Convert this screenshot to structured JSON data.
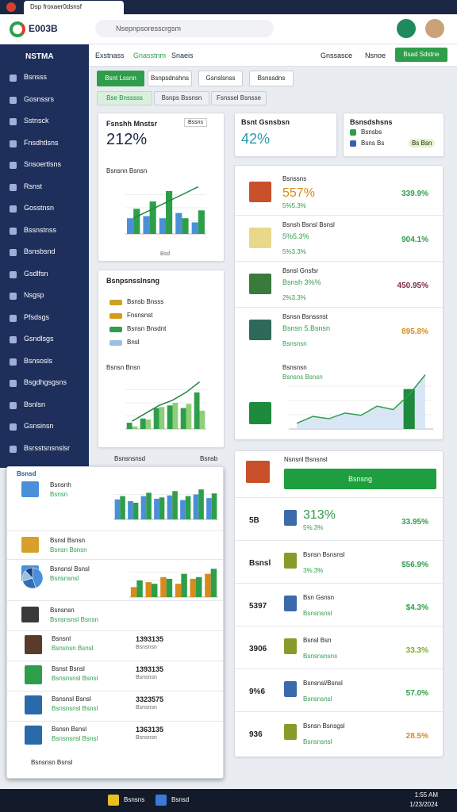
{
  "browser": {
    "tab": "Dsp froxaer0dsnsf",
    "logo": "E003B",
    "search": "Nsepnpsoresscrgsm"
  },
  "sidebar": {
    "title": "NSTMA",
    "items": [
      "Bsnsss",
      "Gosnssrs",
      "Sstnsck",
      "Fnsdhtlsns",
      "Snsoertlsns",
      "Rsnst",
      "Gosstnsn",
      "Bssnstnss",
      "Bsnsbsnd",
      "Gsdlfsn",
      "Nsgsp",
      "Pfsdsgs",
      "Gsndlsgs",
      "Bsnsosls",
      "Bsgdhgsgsns",
      "Bsnlsn",
      "Gsnsinsn",
      "Bsrsstsnsnslsr"
    ]
  },
  "nav": {
    "links": [
      "Exstnass",
      "Gnasstnm",
      "Snaeis"
    ],
    "right": [
      "Gnssasce",
      "Nsnoe"
    ],
    "button": "Bsad Sdstne"
  },
  "actions": [
    "Bsnt Lssnn",
    "Bsnpsdnshns",
    "Gsnslsnss",
    "Bsnssdns"
  ],
  "tabs": [
    "Bse Bnsssss",
    "Bsnps Bssnsn",
    "Fsnssel Bsnsse"
  ],
  "card1": {
    "title": "Fsnshh Mnstsr",
    "chip": "Bssns",
    "value": "212%",
    "chart_title": "Bsnsnn Bsnsn",
    "axis": "Bsd",
    "chart": {
      "type": "bar",
      "ylim": [
        0,
        100
      ],
      "series": [
        {
          "color": "#4a8fd8",
          "values": [
            30,
            34,
            30,
            40,
            22
          ]
        },
        {
          "color": "#2e9e4b",
          "values": [
            48,
            62,
            82,
            30,
            45
          ]
        }
      ],
      "line": {
        "color": "#1e8a3e",
        "values": [
          30,
          45,
          60,
          75,
          90
        ]
      }
    }
  },
  "card2": {
    "title": "Bsnpsnsslnsng",
    "legend": [
      {
        "name": "Bsnsb Bnsss",
        "color": "#c9a227"
      },
      {
        "name": "Fnsnsnst",
        "color": "#d89a1a"
      },
      {
        "name": "Bsnsn Bnsdnt",
        "color": "#2e9e4b"
      },
      {
        "name": "Bnsl",
        "color": "#9bc0e0"
      }
    ],
    "chart_title": "Bsnsn Bnsn",
    "chart": {
      "type": "bar",
      "ylim": [
        0,
        100
      ],
      "series": [
        {
          "color": "#2e9e4b",
          "values": [
            12,
            20,
            40,
            45,
            40,
            70
          ]
        },
        {
          "color": "#8fcf7a",
          "values": [
            5,
            18,
            42,
            50,
            48,
            35
          ]
        }
      ],
      "line": {
        "color": "#1e8a3e",
        "values": [
          15,
          30,
          45,
          55,
          70,
          90
        ]
      }
    }
  },
  "left_footer": [
    "Bsnsnsnsd",
    "Bsnsb"
  ],
  "kpi": {
    "title": "Bsnt Gsnsbsn",
    "value": "42%"
  },
  "legend_card": {
    "title": "Bsnsdshsns",
    "items": [
      "Bsnsbs",
      "Bsns Bs"
    ],
    "tag": "Bs Bsn"
  },
  "list1": {
    "header": "Bsnssns",
    "items": [
      {
        "title": "Bsnssns",
        "value": "557%",
        "note": "5%5.3%",
        "right": "339.9%",
        "color": "#2e9e4b"
      },
      {
        "title": "Bsnsh Bsnsl Bsnsl",
        "value": "5%5.3%",
        "note": "5%3.3%",
        "right": "904.1%",
        "color": "#2e9e4b"
      },
      {
        "title": "Bsnsl Gnsfsr",
        "value": "Bsnsh 3%%",
        "note": "2%3.3%",
        "right": "450.95%",
        "color": "#7a2a4a"
      },
      {
        "title": "Bsnsn Bsnssnst",
        "value": "Bsnsn 5.Bsnsn",
        "note": "Bsnsnsn",
        "right": "895.8%",
        "color": "#d88a1a"
      }
    ],
    "chart_title": "Bsnsnsn",
    "chart_note": "Bsnsns Bsnsn",
    "chart": {
      "type": "area",
      "ylim": [
        0,
        100
      ],
      "series": [
        {
          "color": "#2e9e4b",
          "values": [
            10,
            22,
            18,
            28,
            24,
            40,
            34,
            60,
            95
          ]
        }
      ],
      "bars": {
        "color": "#1e8a3e",
        "values": [
          null,
          null,
          null,
          null,
          null,
          null,
          null,
          70,
          null
        ]
      }
    }
  },
  "list2": {
    "header": "Nsnsnl Bsnsnsl",
    "button": "Bsnsng",
    "items": [
      {
        "left": "5B",
        "title": "313%",
        "note": "5%.3%",
        "right": "33.95%",
        "color": "#2e9e4b"
      },
      {
        "left": "Bsnsl",
        "title": "Bsnsn Bsnsnsl",
        "note": "3%.3%",
        "right": "$56.9%",
        "color": "#2e9e4b"
      },
      {
        "left": "5397",
        "title": "Bsn Gsnsn",
        "note": "Bsnsnsnsl",
        "right": "$4.3%",
        "color": "#2e9e4b"
      },
      {
        "left": "3906",
        "title": "Bsnsl Bsn",
        "note": "Bsnsnsnsns",
        "right": "33.3%",
        "color": "#7ab020"
      },
      {
        "left": "9%6",
        "title": "Bsnsnsl/Bsnsl",
        "note": "Bsnsnsnsl",
        "right": "57.0%",
        "color": "#2e9e4b"
      },
      {
        "left": "936",
        "title": "Bsnsn Bsnsgsl",
        "note": "Bsnsnsnsl",
        "right": "28.5%",
        "color": "#d88a1a"
      }
    ]
  },
  "panel": {
    "header": "Bsnsd",
    "top": [
      {
        "title": "Bsnsnh",
        "note": "Bsnsn"
      },
      {
        "title": "Bsnsl Bsnsn",
        "note": "Bsnsn Bsnsn"
      },
      {
        "title": "Bsnsnsl Bsnsl",
        "note": "Bsnsnsnsl"
      },
      {
        "title": "Bsnsnsn",
        "note": "Bsnsnsnsl Bsnsn"
      }
    ],
    "chart1": {
      "type": "bar",
      "ylim": [
        0,
        100
      ],
      "series": [
        {
          "color": "#4a8fd8",
          "values": [
            60,
            55,
            70,
            62,
            72,
            58,
            75,
            64
          ]
        },
        {
          "color": "#2e9e4b",
          "values": [
            70,
            50,
            80,
            66,
            85,
            70,
            90,
            78
          ]
        }
      ]
    },
    "pie": {
      "type": "pie",
      "values": [
        45,
        25,
        18,
        12
      ],
      "colors": [
        "#4a8fd8",
        "#2e6fb5",
        "#9bc0e0",
        "#1f3f7a"
      ]
    },
    "chart2": {
      "type": "bar",
      "ylim": [
        0,
        100
      ],
      "series": [
        {
          "color": "#d88a1a",
          "values": [
            30,
            45,
            60,
            40,
            55,
            70
          ]
        },
        {
          "color": "#2e9e4b",
          "values": [
            50,
            40,
            55,
            70,
            60,
            85
          ]
        }
      ]
    },
    "rows": [
      {
        "title": "Bsnsnl",
        "note": "Bsnsnsn Bsnsl",
        "num": "1393135",
        "sub": "Bsnsnsn"
      },
      {
        "title": "Bsnst Bsnsl",
        "note": "Bsnsnsnsl Bsnsl",
        "num": "1393135",
        "sub": "Bsnsnsn"
      },
      {
        "title": "Bsnsnsl Bsnsl",
        "note": "Bsnsnsnsl Bsnsl",
        "num": "3323575",
        "sub": "Bsnsnsn"
      },
      {
        "title": "Bsnsn Bsnsl",
        "note": "Bsnsnsnsl Bsnsl",
        "num": "1363135",
        "sub": "Bsnsnsn"
      }
    ],
    "footer": "Bsnsnsn Bsnsl"
  },
  "taskbar": {
    "apps": [
      "Bsnsns",
      "Bsnsd"
    ],
    "time": "1:55 AM",
    "date": "1/23/2024"
  }
}
